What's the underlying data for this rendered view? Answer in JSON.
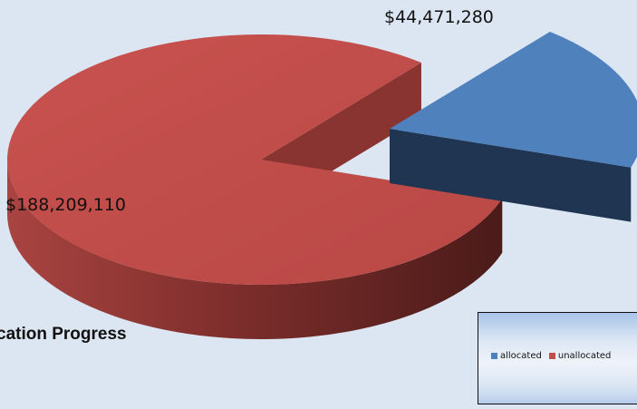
{
  "chart_data": {
    "type": "pie",
    "title": "cation Progress",
    "categories": [
      "allocated",
      "unallocated"
    ],
    "values": [
      44471280,
      188209110
    ],
    "data_labels": [
      "$44,471,280",
      "$188,209,110"
    ],
    "colors": {
      "allocated": "#4f81bd",
      "unallocated": "#c0504d"
    },
    "legend": {
      "position": "bottom-right",
      "entries": [
        "allocated",
        "unallocated"
      ]
    },
    "style": "3d-exploded"
  }
}
